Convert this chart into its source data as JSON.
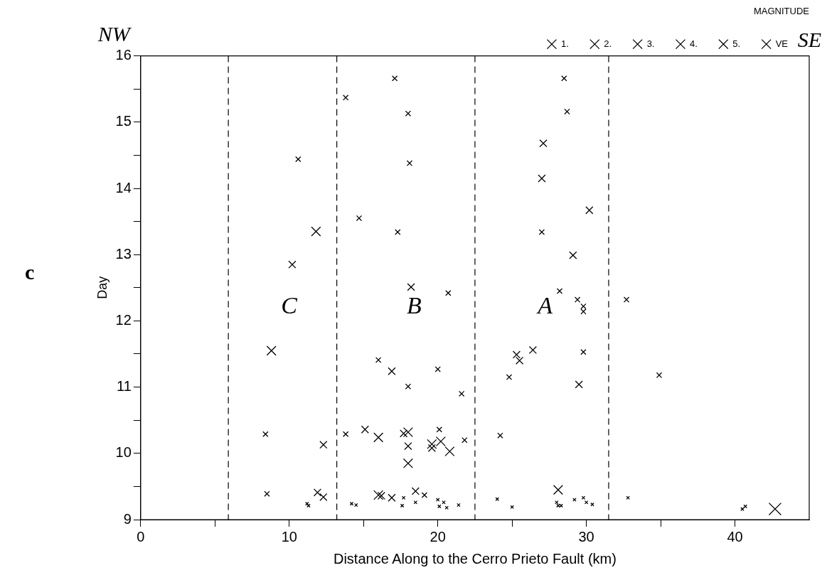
{
  "chart_data": {
    "type": "scatter",
    "xlabel": "Distance Along to the Cerro Prieto Fault (km)",
    "ylabel": "Day",
    "legend_title": "MAGNITUDE",
    "legend": "top right",
    "marker": "cross",
    "grid": false,
    "xlim": [
      0,
      45
    ],
    "xticks": [
      0,
      {
        "value": 5,
        "label": null
      },
      10,
      {
        "value": 15,
        "label": null
      },
      20,
      {
        "value": 25,
        "label": null
      },
      30,
      {
        "value": 35,
        "label": null
      },
      40
    ],
    "ylim": [
      9,
      16
    ],
    "yticks": [
      9,
      {
        "value": 9.5,
        "label": null
      },
      10,
      {
        "value": 10.5,
        "label": null
      },
      11,
      {
        "value": 11.5,
        "label": null
      },
      12,
      {
        "value": 12.5,
        "label": null
      },
      13,
      {
        "value": 13.5,
        "label": null
      },
      14,
      {
        "value": 14.5,
        "label": null
      },
      15,
      {
        "value": 15.5,
        "label": null
      },
      16
    ],
    "series": [
      {
        "name": "1.",
        "color": "#000000",
        "x": [
          11.2,
          11.3,
          14.2,
          14.5,
          17.6,
          17.7,
          18.5,
          20.0,
          20.1,
          20.4,
          20.6,
          21.4,
          24.0,
          25.0,
          28.0,
          28.1,
          28.3,
          29.2,
          29.8,
          30.0,
          30.4,
          32.8,
          40.5,
          40.7
        ],
        "values": [
          9.24,
          9.21,
          9.24,
          9.22,
          9.21,
          9.33,
          9.26,
          9.3,
          9.2,
          9.26,
          9.18,
          9.22,
          9.31,
          9.19,
          9.26,
          9.21,
          9.21,
          9.3,
          9.33,
          9.26,
          9.23,
          9.33,
          9.16,
          9.2
        ]
      },
      {
        "name": "2.",
        "color": "#000000",
        "x": [
          10.6,
          13.8,
          17.1,
          18.0,
          18.1,
          14.7,
          17.3,
          20.7,
          28.5,
          28.7,
          27.0,
          28.2,
          29.4,
          29.8,
          29.8,
          32.7,
          24.8,
          29.8,
          34.9,
          21.6,
          21.8,
          24.2,
          8.4,
          8.5,
          18.0,
          13.8,
          20.1,
          19.1,
          16.0,
          20.0
        ],
        "values": [
          14.44,
          15.37,
          15.66,
          15.13,
          14.38,
          13.55,
          13.34,
          12.42,
          15.66,
          15.16,
          13.34,
          12.45,
          12.32,
          12.22,
          12.14,
          12.32,
          11.15,
          11.53,
          11.18,
          10.9,
          10.2,
          10.27,
          10.29,
          9.39,
          11.01,
          10.29,
          10.36,
          9.37,
          11.41,
          11.27
        ]
      },
      {
        "name": "3.",
        "color": "#000000",
        "x": [
          10.2,
          18.2,
          27.1,
          27.0,
          30.2,
          29.1,
          25.3,
          25.5,
          26.4,
          29.5,
          16.9,
          12.3,
          11.9,
          12.3,
          15.1,
          17.7,
          18.0,
          19.6,
          16.2,
          16.9,
          18.5
        ],
        "values": [
          12.85,
          12.51,
          14.68,
          14.15,
          13.67,
          12.99,
          11.49,
          11.4,
          11.56,
          11.04,
          11.24,
          10.13,
          9.41,
          9.34,
          10.36,
          10.3,
          10.11,
          10.08,
          9.36,
          9.33,
          9.43
        ]
      },
      {
        "name": "4.",
        "color": "#000000",
        "x": [
          11.8,
          8.8,
          28.1,
          16.0,
          18.0,
          18.0,
          19.6,
          20.2,
          20.8,
          16.0
        ],
        "values": [
          13.35,
          11.55,
          9.45,
          10.24,
          10.32,
          9.85,
          10.14,
          10.18,
          10.03,
          9.37
        ]
      },
      {
        "name": "5.",
        "color": "#000000"
      },
      {
        "name": "VE",
        "color": "#000000",
        "x": [
          42.7
        ],
        "values": [
          9.16
        ]
      }
    ],
    "ref_lines": [
      {
        "axis": "x",
        "value": 5.9,
        "line_style": "dashed",
        "color": "#000000"
      },
      {
        "axis": "x",
        "value": 13.2,
        "line_style": "dashed",
        "color": "#000000"
      },
      {
        "axis": "x",
        "value": 22.5,
        "line_style": "dashed",
        "color": "#000000"
      },
      {
        "axis": "x",
        "value": 31.5,
        "line_style": "dashed",
        "color": "#000000"
      }
    ],
    "annotations": [
      "NW",
      "SE",
      "c",
      "C",
      "B",
      "A"
    ]
  }
}
